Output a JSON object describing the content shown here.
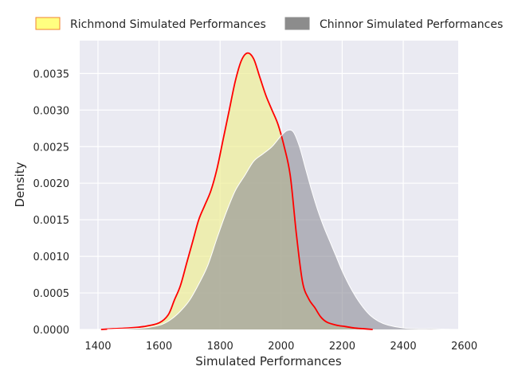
{
  "chart_data": {
    "type": "area",
    "title": "",
    "xlabel": "Simulated Performances",
    "ylabel": "Density",
    "xlim": [
      1340,
      2580
    ],
    "ylim": [
      0,
      0.00395
    ],
    "grid": true,
    "legend_position": "top",
    "x_ticks": [
      1400,
      1600,
      1800,
      2000,
      2200,
      2400,
      2600
    ],
    "y_ticks": [
      0.0,
      0.0005,
      0.001,
      0.0015,
      0.002,
      0.0025,
      0.003,
      0.0035
    ],
    "x_tick_labels": [
      "1400",
      "1600",
      "1800",
      "2000",
      "2200",
      "2400",
      "2600"
    ],
    "y_tick_labels": [
      "0.0000",
      "0.0005",
      "0.0010",
      "0.0015",
      "0.0020",
      "0.0025",
      "0.0030",
      "0.0035"
    ],
    "series": [
      {
        "name": "Richmond Simulated Performances",
        "fill_color": "#eeee96",
        "fill_opacity": 0.7,
        "line_color": "#ff0000",
        "legend_fill": "#ffff80",
        "legend_edge": "#f08030",
        "points": [
          [
            1410,
            0.0
          ],
          [
            1450,
            1e-05
          ],
          [
            1500,
            2e-05
          ],
          [
            1550,
            4e-05
          ],
          [
            1600,
            9e-05
          ],
          [
            1630,
            0.0002
          ],
          [
            1650,
            0.0004
          ],
          [
            1670,
            0.0006
          ],
          [
            1690,
            0.0009
          ],
          [
            1710,
            0.0012
          ],
          [
            1730,
            0.0015
          ],
          [
            1750,
            0.0017
          ],
          [
            1770,
            0.0019
          ],
          [
            1790,
            0.0022
          ],
          [
            1810,
            0.0026
          ],
          [
            1830,
            0.003
          ],
          [
            1850,
            0.0034
          ],
          [
            1870,
            0.00368
          ],
          [
            1890,
            0.00378
          ],
          [
            1910,
            0.0037
          ],
          [
            1930,
            0.00345
          ],
          [
            1950,
            0.0032
          ],
          [
            1970,
            0.003
          ],
          [
            1990,
            0.0028
          ],
          [
            2010,
            0.0025
          ],
          [
            2030,
            0.0021
          ],
          [
            2050,
            0.0013
          ],
          [
            2070,
            0.00065
          ],
          [
            2090,
            0.00042
          ],
          [
            2110,
            0.0003
          ],
          [
            2130,
            0.00017
          ],
          [
            2150,
            0.0001
          ],
          [
            2180,
            6e-05
          ],
          [
            2210,
            4e-05
          ],
          [
            2240,
            2e-05
          ],
          [
            2270,
            1e-05
          ],
          [
            2300,
            0.0
          ]
        ]
      },
      {
        "name": "Chinnor Simulated Performances",
        "fill_color": "#8c8c96",
        "fill_opacity": 0.6,
        "line_color": "#ffffff",
        "legend_fill": "#8c8c8c",
        "legend_edge": "#8c8c8c",
        "points": [
          [
            1430,
            0.0
          ],
          [
            1500,
            1e-05
          ],
          [
            1550,
            2e-05
          ],
          [
            1580,
            4e-05
          ],
          [
            1610,
            7e-05
          ],
          [
            1640,
            0.00014
          ],
          [
            1670,
            0.00025
          ],
          [
            1700,
            0.0004
          ],
          [
            1730,
            0.00062
          ],
          [
            1760,
            0.00088
          ],
          [
            1790,
            0.00125
          ],
          [
            1820,
            0.0016
          ],
          [
            1850,
            0.0019
          ],
          [
            1880,
            0.0021
          ],
          [
            1910,
            0.0023
          ],
          [
            1940,
            0.0024
          ],
          [
            1970,
            0.0025
          ],
          [
            2000,
            0.00265
          ],
          [
            2020,
            0.00272
          ],
          [
            2040,
            0.0027
          ],
          [
            2060,
            0.0025
          ],
          [
            2080,
            0.0022
          ],
          [
            2100,
            0.0019
          ],
          [
            2120,
            0.00163
          ],
          [
            2140,
            0.0014
          ],
          [
            2160,
            0.0012
          ],
          [
            2180,
            0.001
          ],
          [
            2200,
            0.0008
          ],
          [
            2230,
            0.00055
          ],
          [
            2260,
            0.00035
          ],
          [
            2290,
            0.0002
          ],
          [
            2320,
            0.00011
          ],
          [
            2350,
            6e-05
          ],
          [
            2400,
            2e-05
          ],
          [
            2450,
            1e-05
          ],
          [
            2500,
            1e-05
          ],
          [
            2560,
            0.0
          ]
        ]
      }
    ]
  }
}
